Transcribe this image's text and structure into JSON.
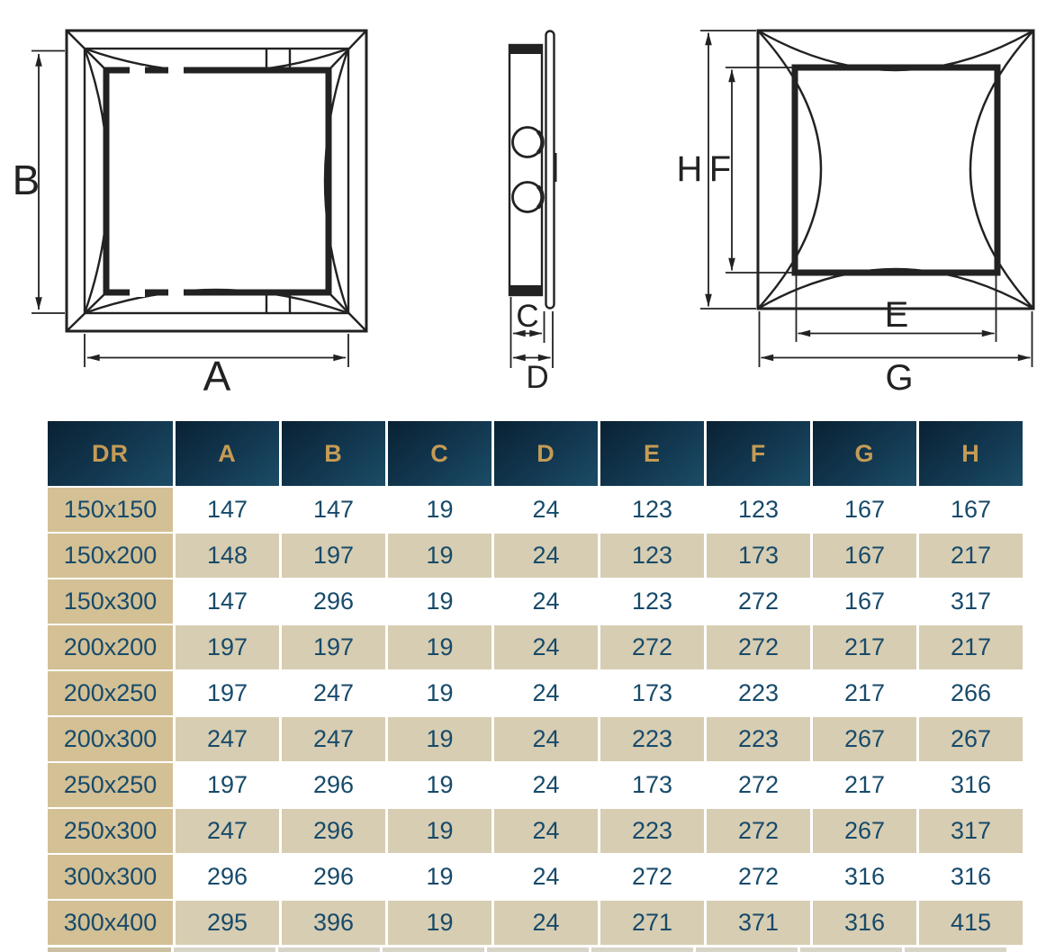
{
  "diagram": {
    "labels": {
      "a": "A",
      "b": "B",
      "c": "C",
      "d": "D",
      "e": "E",
      "f": "F",
      "g": "G",
      "h": "H"
    },
    "views": [
      {
        "id": "rear-view",
        "dimension_labels": [
          "B",
          "A"
        ]
      },
      {
        "id": "side-view",
        "dimension_labels": [
          "C",
          "D"
        ]
      },
      {
        "id": "front-view",
        "dimension_labels": [
          "H",
          "F",
          "E",
          "G"
        ]
      }
    ],
    "line_color": "#222222"
  },
  "table": {
    "header": [
      "DR",
      "A",
      "B",
      "C",
      "D",
      "E",
      "F",
      "G",
      "H"
    ],
    "rows": [
      [
        "150x150",
        "147",
        "147",
        "19",
        "24",
        "123",
        "123",
        "167",
        "167"
      ],
      [
        "150x200",
        "148",
        "197",
        "19",
        "24",
        "123",
        "173",
        "167",
        "217"
      ],
      [
        "150x300",
        "147",
        "296",
        "19",
        "24",
        "123",
        "272",
        "167",
        "317"
      ],
      [
        "200x200",
        "197",
        "197",
        "19",
        "24",
        "272",
        "272",
        "217",
        "217"
      ],
      [
        "200x250",
        "197",
        "247",
        "19",
        "24",
        "173",
        "223",
        "217",
        "266"
      ],
      [
        "200x300",
        "247",
        "247",
        "19",
        "24",
        "223",
        "223",
        "267",
        "267"
      ],
      [
        "250x250",
        "197",
        "296",
        "19",
        "24",
        "173",
        "272",
        "217",
        "316"
      ],
      [
        "250x300",
        "247",
        "296",
        "19",
        "24",
        "223",
        "272",
        "267",
        "317"
      ],
      [
        "300x300",
        "296",
        "296",
        "19",
        "24",
        "272",
        "272",
        "316",
        "316"
      ],
      [
        "300x400",
        "295",
        "396",
        "19",
        "24",
        "271",
        "371",
        "316",
        "415"
      ]
    ],
    "colors": {
      "header_bg_dark": "#0a2133",
      "header_bg_light": "#1c4c66",
      "header_text": "#c59b55",
      "size_column_bg": "#d3c095",
      "alt_row_bg": "#d7cdb2",
      "cell_text": "#174a6a"
    }
  }
}
